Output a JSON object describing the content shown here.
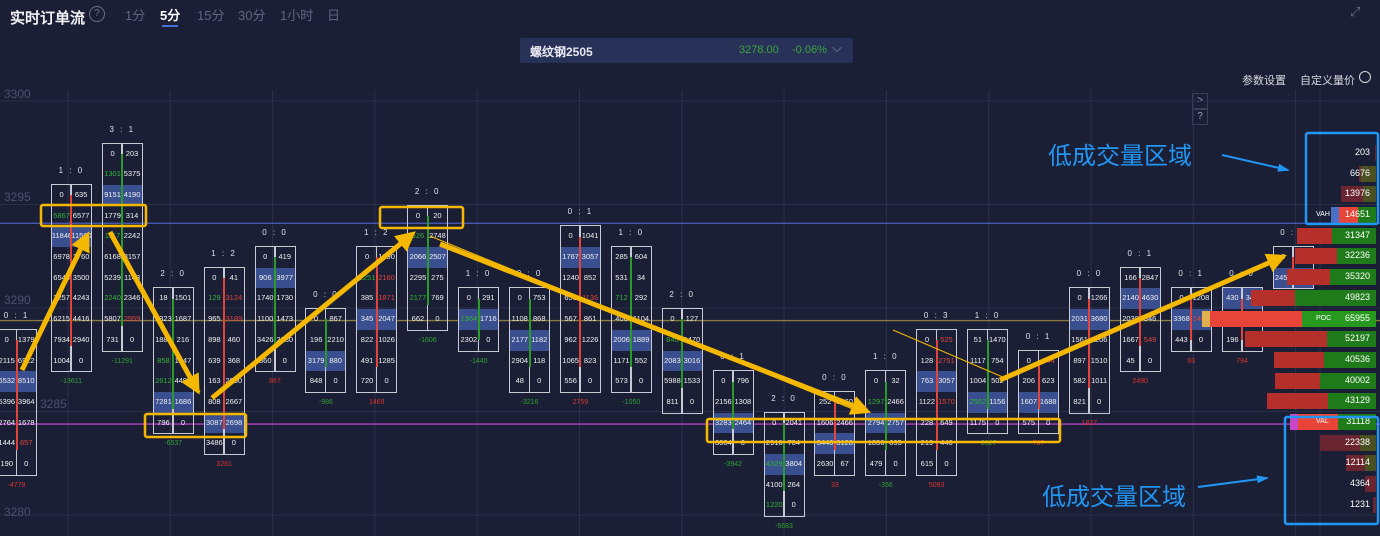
{
  "header": {
    "title": "实时订单流",
    "help_icon": "question-circle-icon",
    "tabs": [
      {
        "label": "1分",
        "active": false
      },
      {
        "label": "5分",
        "active": true
      },
      {
        "label": "15分",
        "active": false
      },
      {
        "label": "30分",
        "active": false
      },
      {
        "label": "1小时",
        "active": false
      },
      {
        "label": "日",
        "active": false
      }
    ],
    "expand_icon": "expand-icon"
  },
  "instrument": {
    "name": "螺纹钢2505",
    "price": "3278.00",
    "change": "-0.06%",
    "dropdown_icon": "chevron-down-icon"
  },
  "toolbar": {
    "params": "参数设置",
    "custom": "自定义量价",
    "gear_icon": "gear-icon",
    "side_buttons": [
      ">",
      "?"
    ]
  },
  "colors": {
    "background": "#1b1f36",
    "up": "#2a9a2a",
    "down": "#e0443a",
    "highlight": "#3a4f8f",
    "annotation_arrow": "#f5b800",
    "annotation_box": "#2196f3"
  },
  "price_axis": [
    "3300",
    "3295",
    "3290",
    "3285",
    "3280"
  ],
  "level_lines": [
    {
      "price": 3294.6,
      "color": "#4a5fc0"
    },
    {
      "price": 3289.9,
      "color": "#8a7a40"
    },
    {
      "price": 3284.9,
      "color": "#b040c0"
    }
  ],
  "candles": [
    {
      "ratio": "0 : 1",
      "top": 3289,
      "dir": "down",
      "delta": "-4779",
      "dc": "down",
      "rows": [
        [
          "0",
          "1379"
        ],
        [
          "2115",
          "6922"
        ],
        [
          "6532",
          "8510",
          "h"
        ],
        [
          "5396",
          "3964"
        ],
        [
          "2764",
          "1678"
        ],
        [
          "1444",
          "657",
          "ar"
        ],
        [
          "190",
          "0"
        ]
      ]
    },
    {
      "ratio": "1 : 0",
      "top": 3296,
      "dir": "down",
      "delta": "-13611",
      "dc": "up",
      "rows": [
        [
          "0",
          "635"
        ],
        [
          "5867",
          "6577",
          "bg"
        ],
        [
          "11846",
          "11500",
          "h"
        ],
        [
          "6978",
          "1760"
        ],
        [
          "6548",
          "3500"
        ],
        [
          "2257",
          "4243"
        ],
        [
          "6215",
          "4416"
        ],
        [
          "7934",
          "2940"
        ],
        [
          "1004",
          "0"
        ]
      ]
    },
    {
      "ratio": "3 : 1",
      "top": 3298,
      "dir": "up",
      "delta": "-11291",
      "dc": "up",
      "rows": [
        [
          "0",
          "203"
        ],
        [
          "1301",
          "5375",
          "bg"
        ],
        [
          "9151",
          "4190",
          "h"
        ],
        [
          "1779",
          "314"
        ],
        [
          "1117",
          "2242",
          "bg"
        ],
        [
          "6168",
          "3157"
        ],
        [
          "5239",
          "1148"
        ],
        [
          "2240",
          "2346",
          "bg"
        ],
        [
          "5807",
          "2959",
          "ar"
        ],
        [
          "731",
          "0"
        ]
      ]
    },
    {
      "ratio": "2 : 0",
      "top": 3291,
      "dir": "up",
      "delta": "-6537",
      "dc": "up",
      "rows": [
        [
          "18",
          "1501"
        ],
        [
          "3323",
          "1687"
        ],
        [
          "1883",
          "216"
        ],
        [
          "858",
          "1047",
          "bg"
        ],
        [
          "2612",
          "4493",
          "bg"
        ],
        [
          "7281",
          "1686",
          "h"
        ],
        [
          "796",
          "0"
        ]
      ]
    },
    {
      "ratio": "1 : 2",
      "top": 3292,
      "dir": "down",
      "delta": "3281",
      "dc": "down",
      "rows": [
        [
          "0",
          "41"
        ],
        [
          "129",
          "3124",
          "bg ar"
        ],
        [
          "965",
          "3189",
          "ar"
        ],
        [
          "898",
          "460"
        ],
        [
          "639",
          "368"
        ],
        [
          "163",
          "2890"
        ],
        [
          "808",
          "2667"
        ],
        [
          "3087",
          "2698",
          "h"
        ],
        [
          "3486",
          "0"
        ]
      ]
    },
    {
      "ratio": "0 : 0",
      "top": 3293,
      "dir": "up",
      "delta": "867",
      "dc": "down",
      "rows": [
        [
          "0",
          "419"
        ],
        [
          "906",
          "3977",
          "h"
        ],
        [
          "1740",
          "1730"
        ],
        [
          "1100",
          "1473"
        ],
        [
          "3426",
          "2280"
        ],
        [
          "860",
          "0"
        ]
      ]
    },
    {
      "ratio": "0 : 0",
      "top": 3290,
      "dir": "up",
      "delta": "-986",
      "dc": "up",
      "rows": [
        [
          "0",
          "867"
        ],
        [
          "196",
          "2210"
        ],
        [
          "3179",
          "880",
          "h"
        ],
        [
          "848",
          "0"
        ]
      ]
    },
    {
      "ratio": "1 : 2",
      "top": 3293,
      "dir": "down",
      "delta": "1469",
      "dc": "down",
      "rows": [
        [
          "0",
          "1390"
        ],
        [
          "1251",
          "2160",
          "bg ar"
        ],
        [
          "385",
          "1871",
          "ar"
        ],
        [
          "345",
          "2047",
          "h"
        ],
        [
          "822",
          "1026"
        ],
        [
          "491",
          "1285"
        ],
        [
          "720",
          "0"
        ]
      ]
    },
    {
      "ratio": "2 : 0",
      "top": 3295,
      "dir": "up",
      "delta": "-1606",
      "dc": "up",
      "rows": [
        [
          "0",
          "20"
        ],
        [
          "626",
          "2748",
          "bg"
        ],
        [
          "2066",
          "2507",
          "h"
        ],
        [
          "2295",
          "275"
        ],
        [
          "2177",
          "769",
          "bg"
        ],
        [
          "662",
          "0"
        ]
      ]
    },
    {
      "ratio": "1 : 0",
      "top": 3291,
      "dir": "up",
      "delta": "-1440",
      "dc": "up",
      "rows": [
        [
          "0",
          "291"
        ],
        [
          "1364",
          "1716",
          "h bg"
        ],
        [
          "2302",
          "0"
        ]
      ]
    },
    {
      "ratio": "0 : 0",
      "top": 3291,
      "dir": "up",
      "delta": "-3216",
      "dc": "up",
      "rows": [
        [
          "0",
          "753"
        ],
        [
          "1108",
          "868"
        ],
        [
          "2177",
          "1182",
          "h"
        ],
        [
          "2904",
          "118"
        ],
        [
          "48",
          "0"
        ]
      ]
    },
    {
      "ratio": "0 : 1",
      "top": 3294,
      "dir": "down",
      "delta": "2759",
      "dc": "down",
      "rows": [
        [
          "0",
          "1041"
        ],
        [
          "1767",
          "3057",
          "h"
        ],
        [
          "1240",
          "852"
        ],
        [
          "650",
          "1136",
          "ar"
        ],
        [
          "567",
          "861"
        ],
        [
          "962",
          "1226"
        ],
        [
          "1065",
          "823"
        ],
        [
          "556",
          "0"
        ]
      ]
    },
    {
      "ratio": "1 : 0",
      "top": 3293,
      "dir": "up",
      "delta": "-1050",
      "dc": "up",
      "rows": [
        [
          "285",
          "604"
        ],
        [
          "531",
          "34"
        ],
        [
          "712",
          "292",
          "bg"
        ],
        [
          "406",
          "1104"
        ],
        [
          "2006",
          "1889",
          "h"
        ],
        [
          "1171",
          "552"
        ],
        [
          "573",
          "0"
        ]
      ]
    },
    {
      "ratio": "2 : 0",
      "top": 3290,
      "dir": "up",
      "delta": "",
      "dc": "up",
      "rows": [
        [
          "0",
          "127"
        ],
        [
          "845",
          "1470",
          "bg"
        ],
        [
          "2083",
          "3016",
          "h"
        ],
        [
          "5988",
          "1533"
        ],
        [
          "811",
          "0"
        ]
      ]
    },
    {
      "ratio": "0 : 1",
      "top": 3287,
      "dir": "up",
      "delta": "-3942",
      "dc": "up",
      "rows": [
        [
          "0",
          "796"
        ],
        [
          "2156",
          "1308"
        ],
        [
          "3283",
          "2464",
          "h"
        ],
        [
          "3084",
          "0"
        ]
      ]
    },
    {
      "ratio": "2 : 0",
      "top": 3285,
      "dir": "up",
      "delta": "-5683",
      "dc": "up",
      "rows": [
        [
          "0",
          "2041"
        ],
        [
          "2916",
          "784"
        ],
        [
          "4329",
          "3804",
          "h bg"
        ],
        [
          "4100",
          "264"
        ],
        [
          "1220",
          "0",
          "bg"
        ]
      ]
    },
    {
      "ratio": "0 : 0",
      "top": 3286,
      "dir": "down",
      "delta": "33",
      "dc": "down",
      "rows": [
        [
          "252",
          "1360"
        ],
        [
          "1606",
          "2466"
        ],
        [
          "3440",
          "3128",
          "h"
        ],
        [
          "2630",
          "67"
        ]
      ]
    },
    {
      "ratio": "1 : 0",
      "top": 3287,
      "dir": "up",
      "delta": "-356",
      "dc": "up",
      "rows": [
        [
          "0",
          "32"
        ],
        [
          "1297",
          "2466",
          "bg"
        ],
        [
          "2794",
          "2757",
          "h"
        ],
        [
          "1836",
          "895"
        ],
        [
          "479",
          "0"
        ]
      ]
    },
    {
      "ratio": "0 : 3",
      "top": 3289,
      "dir": "down",
      "delta": "5083",
      "dc": "down",
      "rows": [
        [
          "0",
          "525",
          "ar"
        ],
        [
          "128",
          "2751",
          "ar"
        ],
        [
          "763",
          "3057",
          "h"
        ],
        [
          "1122",
          "1570",
          "ar"
        ],
        [
          "228",
          "649"
        ],
        [
          "219",
          "446"
        ],
        [
          "615",
          "0"
        ]
      ]
    },
    {
      "ratio": "1 : 0",
      "top": 3289,
      "dir": "up",
      "delta": "-2027",
      "dc": "up",
      "rows": [
        [
          "51",
          "1470"
        ],
        [
          "1117",
          "754"
        ],
        [
          "1004",
          "502"
        ],
        [
          "2562",
          "1156",
          "h bg"
        ],
        [
          "1175",
          "0"
        ]
      ]
    },
    {
      "ratio": "0 : 1",
      "top": 3288,
      "dir": "down",
      "delta": "767",
      "dc": "down",
      "rows": [
        [
          "0",
          "844",
          "ar"
        ],
        [
          "206",
          "623"
        ],
        [
          "1607",
          "1688",
          "h"
        ],
        [
          "575",
          "0"
        ]
      ]
    },
    {
      "ratio": "0 : 0",
      "top": 3291,
      "dir": "down",
      "delta": "1827",
      "dc": "down",
      "rows": [
        [
          "0",
          "1266"
        ],
        [
          "2031",
          "3680",
          "h"
        ],
        [
          "1561",
          "2206"
        ],
        [
          "897",
          "1510"
        ],
        [
          "582",
          "1011"
        ],
        [
          "821",
          "0"
        ]
      ]
    },
    {
      "ratio": "0 : 1",
      "top": 3292,
      "dir": "down",
      "delta": "2490",
      "dc": "down",
      "rows": [
        [
          "166",
          "2847"
        ],
        [
          "2140",
          "4630",
          "h"
        ],
        [
          "2038",
          "946"
        ],
        [
          "1667",
          "549",
          "ar"
        ],
        [
          "45",
          "0"
        ]
      ]
    },
    {
      "ratio": "0 : 1",
      "top": 3291,
      "dir": "down",
      "delta": "93",
      "dc": "down",
      "rows": [
        [
          "0",
          "1208"
        ],
        [
          "3368",
          "1403",
          "h ar"
        ],
        [
          "443",
          "0"
        ]
      ]
    },
    {
      "ratio": "0 : 0",
      "top": 3291,
      "dir": "down",
      "delta": "794",
      "dc": "down",
      "rows": [
        [
          "430",
          "349",
          "h"
        ],
        [
          "1245",
          "620"
        ],
        [
          "196",
          "0"
        ]
      ]
    },
    {
      "ratio": "0 : 0",
      "top": 3293,
      "dir": "down",
      "delta": "",
      "dc": "down",
      "rows": [
        [
          "0",
          ""
        ],
        [
          "2455",
          "",
          "h"
        ]
      ]
    }
  ],
  "volume_profile": [
    {
      "price": 3298,
      "total": 203,
      "buy": 0,
      "low": true
    },
    {
      "price": 3297,
      "total": 6676,
      "buy": 5960,
      "low": true
    },
    {
      "price": 3296,
      "total": 13976,
      "buy": 5165,
      "low": true
    },
    {
      "price": 3295,
      "total": 14651,
      "buy": 7150,
      "tag": "VAH"
    },
    {
      "price": 3294,
      "total": 31347,
      "buy": 17480
    },
    {
      "price": 3293,
      "total": 32236,
      "buy": 15495
    },
    {
      "price": 3292,
      "total": 35320,
      "buy": 18276
    },
    {
      "price": 3291,
      "total": 49823,
      "buy": 32180
    },
    {
      "price": 3290,
      "total": 65955,
      "buy": 29400,
      "tag": "POC"
    },
    {
      "price": 3289,
      "total": 52197,
      "buy": 19470
    },
    {
      "price": 3288,
      "total": 40536,
      "buy": 20660
    },
    {
      "price": 3287,
      "total": 40002,
      "buy": 22250
    },
    {
      "price": 3286,
      "total": 43129,
      "buy": 19070
    },
    {
      "price": 3285,
      "total": 31118,
      "buy": 15100,
      "tag": "VAL"
    },
    {
      "price": 3284,
      "total": 22338,
      "buy": 6357,
      "low": true
    },
    {
      "price": 3283,
      "total": 12114,
      "buy": 4370,
      "low": true
    },
    {
      "price": 3282,
      "total": 4364,
      "buy": 0,
      "low": true
    },
    {
      "price": 3281,
      "total": 1231,
      "buy": 0,
      "low": true
    }
  ],
  "annotations": {
    "low_volume_label_top": "低成交量区域",
    "low_volume_label_bottom": "低成交量区域"
  }
}
